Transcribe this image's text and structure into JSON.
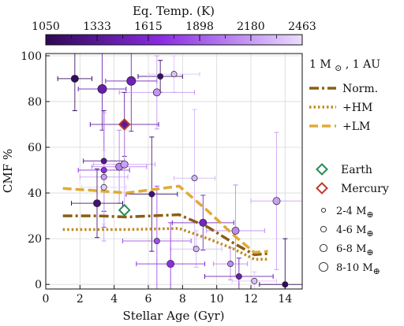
{
  "chart_data": {
    "type": "scatter",
    "title": "",
    "xlabel": "Stellar Age (Gyr)",
    "ylabel": "CMF %",
    "xlim": [
      0,
      15
    ],
    "ylim": [
      -2,
      101
    ],
    "x_ticks": [
      0,
      2,
      4,
      6,
      8,
      10,
      12,
      14
    ],
    "y_ticks": [
      0,
      20,
      40,
      60,
      80,
      100
    ],
    "grid": true,
    "colorbar": {
      "label": "Eq. Temp. (K)",
      "ticks": [
        1050,
        1333,
        1615,
        1898,
        2180,
        2463
      ],
      "range": [
        1050,
        2463
      ],
      "color_low": "#2e0854",
      "color_high": "#eadcff"
    },
    "legend": {
      "placement": "right",
      "header": "1 M",
      "header_sym": "⊙",
      "header_tail": ", 1 AU",
      "lines": [
        {
          "label": "Norm.",
          "style": "dashdot",
          "color": "#8b5e14"
        },
        {
          "label": "+HM",
          "style": "dotted",
          "color": "#c08a1e"
        },
        {
          "label": "+LM",
          "style": "dashed",
          "color": "#e0aa35"
        }
      ],
      "markers": [
        {
          "label": "Earth",
          "color": "#2a8a55"
        },
        {
          "label": "Mercury",
          "color": "#c0392b"
        }
      ],
      "sizes": [
        {
          "label": "2-4 M",
          "sym": "⊕",
          "r": 2.6
        },
        {
          "label": "4-6 M",
          "sym": "⊕",
          "r": 3.6
        },
        {
          "label": "6-8 M",
          "sym": "⊕",
          "r": 4.6
        },
        {
          "label": "8-10 M",
          "sym": "⊕",
          "r": 5.6
        }
      ]
    },
    "series_lines": [
      {
        "name": "Norm.",
        "style": "dashdot",
        "color": "#8b5e14",
        "x": [
          1.0,
          3.0,
          4.7,
          7.8,
          9.5,
          11.0,
          12.2,
          13.0
        ],
        "y": [
          30.0,
          30.0,
          29.5,
          30.5,
          25.0,
          18.0,
          13.0,
          13.5
        ]
      },
      {
        "name": "+HM",
        "style": "dotted",
        "color": "#c08a1e",
        "x": [
          1.0,
          3.0,
          4.7,
          7.8,
          9.5,
          11.0,
          12.2,
          13.0
        ],
        "y": [
          24.0,
          24.0,
          24.0,
          24.5,
          20.0,
          15.5,
          11.0,
          11.0
        ]
      },
      {
        "name": "+LM",
        "style": "dashed",
        "color": "#e0aa35",
        "x": [
          1.0,
          3.0,
          4.7,
          7.8,
          9.5,
          11.0,
          12.2,
          13.0
        ],
        "y": [
          42.0,
          41.0,
          40.0,
          43.0,
          32.0,
          21.5,
          14.0,
          14.5
        ]
      }
    ],
    "points": [
      {
        "x": 1.7,
        "y": 90,
        "xerr": 1.0,
        "yerr": 14,
        "temp": 1100,
        "size": 6
      },
      {
        "x": 3.3,
        "y": 85.5,
        "xerr": 1.4,
        "yerr": 18,
        "temp": 1450,
        "size": 8
      },
      {
        "x": 5.0,
        "y": 89,
        "xerr": 1.5,
        "yerr": 22,
        "temp": 1500,
        "size": 8
      },
      {
        "x": 6.7,
        "y": 91,
        "xerr": 1.3,
        "yerr": 7,
        "temp": 1150,
        "size": 4
      },
      {
        "x": 7.5,
        "y": 92,
        "xerr": 1.5,
        "yerr": 8,
        "temp": 2350,
        "size": 4
      },
      {
        "x": 6.5,
        "y": 84,
        "xerr": 2.2,
        "yerr": 16,
        "temp": 2150,
        "size": 6
      },
      {
        "x": 4.6,
        "y": 70,
        "xerr": 2.0,
        "yerr": 14,
        "temp": 1380,
        "size": 6
      },
      {
        "x": 3.4,
        "y": 54,
        "xerr": 1.2,
        "yerr": 22,
        "temp": 1300,
        "size": 4
      },
      {
        "x": 3.4,
        "y": 50,
        "xerr": 1.5,
        "yerr": 25,
        "temp": 1700,
        "size": 4
      },
      {
        "x": 3.4,
        "y": 47,
        "xerr": 1.4,
        "yerr": 28,
        "temp": 2200,
        "size": 4
      },
      {
        "x": 4.3,
        "y": 51.5,
        "xerr": 1.6,
        "yerr": 16,
        "temp": 2050,
        "size": 6
      },
      {
        "x": 4.6,
        "y": 52.5,
        "xerr": 1.8,
        "yerr": 18,
        "temp": 2200,
        "size": 6
      },
      {
        "x": 3.4,
        "y": 42.5,
        "xerr": 1.3,
        "yerr": 16,
        "temp": 2400,
        "size": 4
      },
      {
        "x": 3.0,
        "y": 35.5,
        "xerr": 1.5,
        "yerr": 15,
        "temp": 1200,
        "size": 6
      },
      {
        "x": 6.2,
        "y": 39.5,
        "xerr": 1.5,
        "yerr": 25,
        "temp": 1200,
        "size": 4
      },
      {
        "x": 8.7,
        "y": 46.5,
        "xerr": 1.2,
        "yerr": 30,
        "temp": 2300,
        "size": 4
      },
      {
        "x": 9.2,
        "y": 27,
        "xerr": 1.8,
        "yerr": 12,
        "temp": 1550,
        "size": 6
      },
      {
        "x": 11.1,
        "y": 23.5,
        "xerr": 1.7,
        "yerr": 20,
        "temp": 2100,
        "size": 6
      },
      {
        "x": 6.5,
        "y": 19,
        "xerr": 2.0,
        "yerr": 24,
        "temp": 1850,
        "size": 4
      },
      {
        "x": 8.8,
        "y": 15.5,
        "xerr": 1.5,
        "yerr": 8,
        "temp": 2300,
        "size": 4
      },
      {
        "x": 10.8,
        "y": 9,
        "xerr": 1.0,
        "yerr": 7,
        "temp": 2100,
        "size": 4
      },
      {
        "x": 7.3,
        "y": 9,
        "xerr": 2.0,
        "yerr": 18,
        "temp": 1700,
        "size": 6
      },
      {
        "x": 11.3,
        "y": 3.5,
        "xerr": 2.0,
        "yerr": 8,
        "temp": 1450,
        "size": 4
      },
      {
        "x": 12.2,
        "y": 1.5,
        "xerr": 1.3,
        "yerr": 4,
        "temp": 2350,
        "size": 4
      },
      {
        "x": 14.0,
        "y": 0,
        "xerr": 1.5,
        "yerr": 20,
        "temp": 1100,
        "size": 4
      },
      {
        "x": 13.5,
        "y": 36.5,
        "xerr": 1.5,
        "yerr": 30,
        "temp": 2200,
        "size": 6
      }
    ],
    "earth": {
      "x": 4.6,
      "y": 32.5
    },
    "mercury": {
      "x": 4.6,
      "y": 70
    }
  }
}
